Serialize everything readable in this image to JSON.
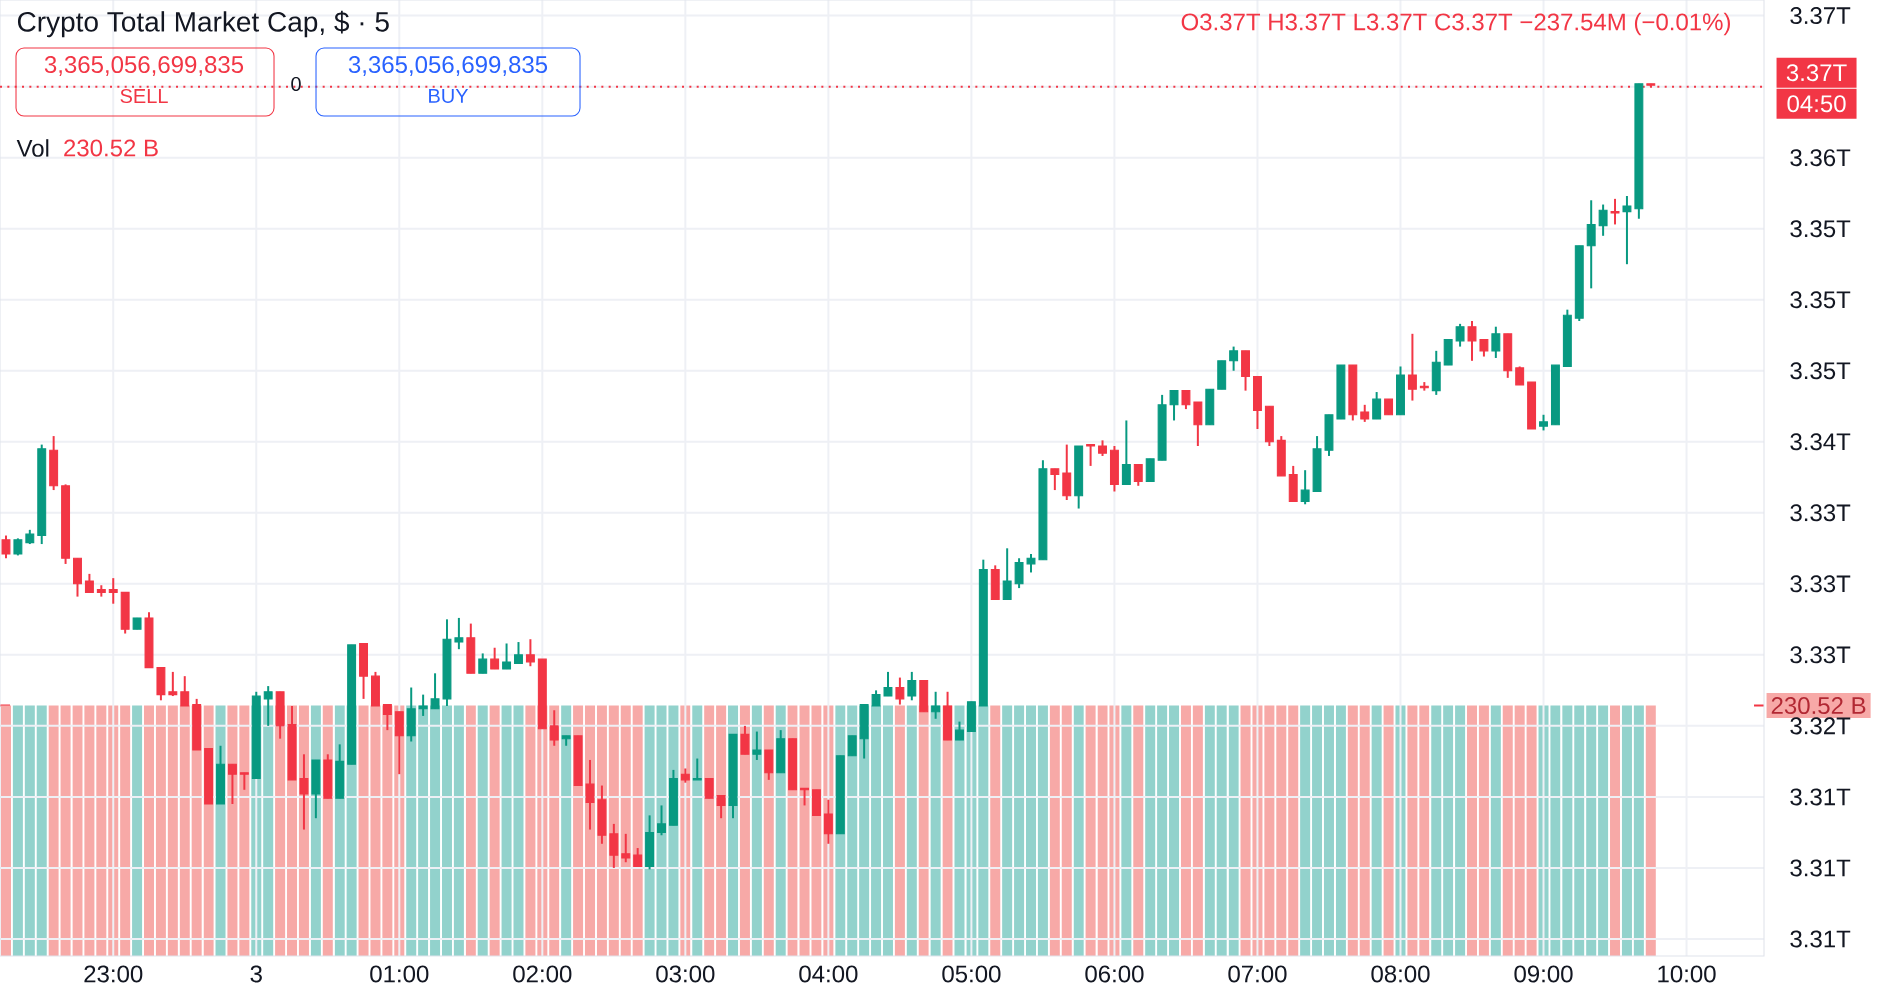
{
  "chart_data": {
    "type": "candlestick",
    "title": "Crypto Total Market Cap, $ · 5",
    "annotations": [
      "O3.37T H3.37T L3.37T C3.37T −237.54M (−0.01%)",
      "3,365,056,699,835",
      "SELL",
      "0",
      "3,365,056,699,835",
      "BUY",
      "230.52 B",
      "04:50",
      "Vol"
    ],
    "categories": [
      null,
      null,
      null,
      null,
      null,
      null,
      null,
      null,
      null,
      "23:00",
      null,
      null,
      null,
      null,
      null,
      null,
      null,
      null,
      null,
      null,
      null,
      "3",
      null,
      null,
      null,
      null,
      null,
      null,
      null,
      null,
      null,
      null,
      null,
      "01:00",
      null,
      null,
      null,
      null,
      null,
      null,
      null,
      null,
      null,
      null,
      null,
      "02:00",
      null,
      null,
      null,
      null,
      null,
      null,
      null,
      null,
      null,
      null,
      null,
      "03:00",
      null,
      null,
      null,
      null,
      null,
      null,
      null,
      null,
      null,
      null,
      null,
      "04:00",
      null,
      null,
      null,
      null,
      null,
      null,
      null,
      null,
      null,
      null,
      null,
      "05:00",
      null,
      null,
      null,
      null,
      null,
      null,
      null,
      null,
      null,
      null,
      null,
      "06:00",
      null,
      null,
      null,
      null,
      null,
      null,
      null,
      null,
      null,
      null,
      null,
      "07:00",
      null,
      null,
      null,
      null,
      null,
      null,
      null,
      null,
      null,
      null,
      null,
      "08:00",
      null,
      null,
      null,
      null,
      null,
      null,
      null,
      null,
      null,
      null,
      null,
      "09:00",
      null,
      null,
      null,
      null,
      null,
      null,
      null,
      null,
      null,
      null,
      null,
      "10:00",
      null,
      null,
      null,
      null,
      null,
      null
    ],
    "ylim": [
      3.3038,
      3.3711
    ],
    "y2lim": [
      0,
      880
    ],
    "yticks": [
      {
        "value": 3.37,
        "label": "3.37T"
      },
      {
        "value": 3.365,
        "label": null
      },
      {
        "value": 3.36,
        "label": "3.36T"
      },
      {
        "value": 3.355,
        "label": "3.35T"
      },
      {
        "value": 3.35,
        "label": "3.35T"
      },
      {
        "value": 3.345,
        "label": "3.35T"
      },
      {
        "value": 3.34,
        "label": "3.34T"
      },
      {
        "value": 3.335,
        "label": "3.33T"
      },
      {
        "value": 3.33,
        "label": "3.33T"
      },
      {
        "value": 3.325,
        "label": "3.33T"
      },
      {
        "value": 3.32,
        "label": "3.32T"
      },
      {
        "value": 3.315,
        "label": "3.31T"
      },
      {
        "value": 3.31,
        "label": "3.31T"
      },
      {
        "value": 3.305,
        "label": "3.31T"
      }
    ],
    "y2ticks": [
      {
        "value": 230.52,
        "label": "230.52 B"
      }
    ],
    "grid": true,
    "ref_lines": [
      {
        "axis": "y",
        "value": 3.365,
        "label": "3.37T",
        "color": "#f23645",
        "line_style": "dotted"
      }
    ],
    "series": [
      {
        "type": "bar",
        "axis": "y2",
        "values": [
          230.52,
          230.52,
          230.52,
          230.52,
          230.52,
          230.52,
          230.52,
          230.52,
          230.52,
          230.52,
          230.52,
          230.52,
          230.52,
          230.52,
          230.52,
          230.52,
          230.52,
          230.52,
          230.52,
          230.52,
          230.52,
          230.52,
          230.52,
          230.52,
          230.52,
          230.52,
          230.52,
          230.52,
          230.52,
          230.52,
          230.52,
          230.52,
          230.52,
          230.52,
          230.52,
          230.52,
          230.52,
          230.52,
          230.52,
          230.52,
          230.52,
          230.52,
          230.52,
          230.52,
          230.52,
          230.52,
          230.52,
          230.52,
          230.52,
          230.52,
          230.52,
          230.52,
          230.52,
          230.52,
          230.52,
          230.52,
          230.52,
          230.52,
          230.52,
          230.52,
          230.52,
          230.52,
          230.52,
          230.52,
          230.52,
          230.52,
          230.52,
          230.52,
          230.52,
          230.52,
          230.52,
          230.52,
          230.52,
          230.52,
          230.52,
          230.52,
          230.52,
          230.52,
          230.52,
          230.52,
          230.52,
          230.52,
          230.52,
          230.52,
          230.52,
          230.52,
          230.52,
          230.52,
          230.52,
          230.52,
          230.52,
          230.52,
          230.52,
          230.52,
          230.52,
          230.52,
          230.52,
          230.52,
          230.52,
          230.52,
          230.52,
          230.52,
          230.52,
          230.52,
          230.52,
          230.52,
          230.52,
          230.52,
          230.52,
          230.52,
          230.52,
          230.52,
          230.52,
          230.52,
          230.52,
          230.52,
          230.52,
          230.52,
          230.52,
          230.52,
          230.52,
          230.52,
          230.52,
          230.52,
          230.52,
          230.52,
          230.52,
          230.52,
          230.52,
          230.52,
          230.52,
          230.52,
          230.52,
          230.52,
          230.52,
          230.52,
          230.52,
          230.52,
          230.52,
          null,
          null,
          null,
          null,
          null,
          null,
          null,
          null,
          null
        ],
        "colors": [
          "#f7a9a7",
          "#92d2cc",
          "#92d2cc",
          "#92d2cc",
          "#f7a9a7",
          "#f7a9a7",
          "#f7a9a7",
          "#f7a9a7",
          "#f7a9a7",
          "#f7a9a7",
          "#f7a9a7",
          "#92d2cc",
          "#f7a9a7",
          "#f7a9a7",
          "#f7a9a7",
          "#f7a9a7",
          "#f7a9a7",
          "#f7a9a7",
          "#92d2cc",
          "#f7a9a7",
          "#f7a9a7",
          "#92d2cc",
          "#92d2cc",
          "#f7a9a7",
          "#f7a9a7",
          "#f7a9a7",
          "#92d2cc",
          "#f7a9a7",
          "#92d2cc",
          "#92d2cc",
          "#f7a9a7",
          "#f7a9a7",
          "#f7a9a7",
          "#f7a9a7",
          "#92d2cc",
          "#92d2cc",
          "#92d2cc",
          "#92d2cc",
          "#92d2cc",
          "#f7a9a7",
          "#92d2cc",
          "#f7a9a7",
          "#92d2cc",
          "#92d2cc",
          "#f7a9a7",
          "#f7a9a7",
          "#f7a9a7",
          "#92d2cc",
          "#f7a9a7",
          "#f7a9a7",
          "#f7a9a7",
          "#f7a9a7",
          "#f7a9a7",
          "#f7a9a7",
          "#92d2cc",
          "#92d2cc",
          "#92d2cc",
          "#f7a9a7",
          "#92d2cc",
          "#f7a9a7",
          "#f7a9a7",
          "#92d2cc",
          "#f7a9a7",
          "#92d2cc",
          "#f7a9a7",
          "#92d2cc",
          "#f7a9a7",
          "#f7a9a7",
          "#f7a9a7",
          "#f7a9a7",
          "#92d2cc",
          "#92d2cc",
          "#92d2cc",
          "#92d2cc",
          "#92d2cc",
          "#f7a9a7",
          "#92d2cc",
          "#f7a9a7",
          "#92d2cc",
          "#f7a9a7",
          "#92d2cc",
          "#92d2cc",
          "#92d2cc",
          "#f7a9a7",
          "#92d2cc",
          "#92d2cc",
          "#92d2cc",
          "#92d2cc",
          "#f7a9a7",
          "#f7a9a7",
          "#92d2cc",
          "#f7a9a7",
          "#f7a9a7",
          "#f7a9a7",
          "#92d2cc",
          "#f7a9a7",
          "#92d2cc",
          "#92d2cc",
          "#92d2cc",
          "#f7a9a7",
          "#f7a9a7",
          "#92d2cc",
          "#92d2cc",
          "#92d2cc",
          "#f7a9a7",
          "#f7a9a7",
          "#f7a9a7",
          "#f7a9a7",
          "#f7a9a7",
          "#92d2cc",
          "#92d2cc",
          "#92d2cc",
          "#92d2cc",
          "#f7a9a7",
          "#f7a9a7",
          "#92d2cc",
          "#f7a9a7",
          "#92d2cc",
          "#f7a9a7",
          "#f7a9a7",
          "#92d2cc",
          "#92d2cc",
          "#92d2cc",
          "#f7a9a7",
          "#f7a9a7",
          "#92d2cc",
          "#f7a9a7",
          "#f7a9a7",
          "#f7a9a7",
          "#92d2cc",
          "#92d2cc",
          "#92d2cc",
          "#92d2cc",
          "#92d2cc",
          "#92d2cc",
          "#f7a9a7",
          "#92d2cc",
          "#92d2cc",
          "#f7a9a7",
          null,
          null,
          null,
          null,
          null,
          null,
          null,
          null,
          null
        ]
      },
      {
        "ohlc": [
          [
            3.3331,
            3.3334,
            3.3318,
            3.3321
          ],
          [
            3.3321,
            3.3332,
            3.332,
            3.3331
          ],
          [
            3.3329,
            3.3338,
            3.3328,
            3.3335
          ],
          [
            3.3334,
            3.3398,
            3.3328,
            3.3395
          ],
          [
            3.3394,
            3.3404,
            3.3366,
            3.3369
          ],
          [
            3.3369,
            3.337,
            3.3314,
            3.3318
          ],
          [
            3.3318,
            3.3318,
            3.3291,
            3.33
          ],
          [
            3.3302,
            3.3307,
            3.3294,
            3.3294
          ],
          [
            3.3296,
            3.3299,
            3.3291,
            3.3294
          ],
          [
            3.3296,
            3.3304,
            3.3286,
            3.3294
          ],
          [
            3.3294,
            3.3294,
            3.3265,
            3.3268
          ],
          [
            3.3268,
            3.3276,
            3.3268,
            3.3276
          ],
          [
            3.3276,
            3.328,
            3.3241,
            3.3241
          ],
          [
            3.3241,
            3.3241,
            3.3218,
            3.3222
          ],
          [
            3.3224,
            3.3238,
            3.3221,
            3.3222
          ],
          [
            3.3224,
            3.3235,
            3.3214,
            3.3214
          ],
          [
            3.3215,
            3.3219,
            3.3183,
            3.3183
          ],
          [
            3.3184,
            3.3184,
            3.3145,
            3.3145
          ],
          [
            3.3145,
            3.3186,
            3.3145,
            3.3173
          ],
          [
            3.3173,
            3.3173,
            3.3145,
            3.3166
          ],
          [
            3.3167,
            3.3167,
            3.3155,
            3.3166
          ],
          [
            3.3163,
            3.3224,
            3.3163,
            3.3221
          ],
          [
            3.3219,
            3.3228,
            3.32,
            3.3224
          ],
          [
            3.3224,
            3.3224,
            3.3191,
            3.32
          ],
          [
            3.3201,
            3.3214,
            3.3162,
            3.3162
          ],
          [
            3.3163,
            3.318,
            3.3127,
            3.3152
          ],
          [
            3.3152,
            3.3176,
            3.3135,
            3.3176
          ],
          [
            3.3176,
            3.318,
            3.3149,
            3.3149
          ],
          [
            3.3149,
            3.3187,
            3.3149,
            3.3175
          ],
          [
            3.3173,
            3.3257,
            3.3173,
            3.3257
          ],
          [
            3.3258,
            3.3258,
            3.3219,
            3.3235
          ],
          [
            3.3235,
            3.3238,
            3.3214,
            3.3214
          ],
          [
            3.3215,
            3.3215,
            3.3197,
            3.3208
          ],
          [
            3.321,
            3.321,
            3.3166,
            3.3193
          ],
          [
            3.3193,
            3.3227,
            3.3189,
            3.3212
          ],
          [
            3.3212,
            3.3222,
            3.3207,
            3.3214
          ],
          [
            3.3212,
            3.3237,
            3.3212,
            3.3219
          ],
          [
            3.3219,
            3.3275,
            3.3214,
            3.3261
          ],
          [
            3.3259,
            3.3276,
            3.3254,
            3.3262
          ],
          [
            3.3262,
            3.3272,
            3.3237,
            3.3237
          ],
          [
            3.3237,
            3.3251,
            3.3237,
            3.3247
          ],
          [
            3.3247,
            3.3255,
            3.324,
            3.324
          ],
          [
            3.324,
            3.3258,
            3.324,
            3.3245
          ],
          [
            3.3244,
            3.3259,
            3.3244,
            3.325
          ],
          [
            3.325,
            3.3261,
            3.3242,
            3.3245
          ],
          [
            3.3247,
            3.3247,
            3.3198,
            3.3198
          ],
          [
            3.32,
            3.3211,
            3.3186,
            3.319
          ],
          [
            3.3191,
            3.3193,
            3.3186,
            3.3193
          ],
          [
            3.3193,
            3.3193,
            3.3158,
            3.3158
          ],
          [
            3.3159,
            3.3176,
            3.3127,
            3.3146
          ],
          [
            3.3148,
            3.3158,
            3.3117,
            3.3123
          ],
          [
            3.3124,
            3.3131,
            3.31,
            3.3109
          ],
          [
            3.311,
            3.3124,
            3.3104,
            3.3107
          ],
          [
            3.3109,
            3.3114,
            3.3101,
            3.3101
          ],
          [
            3.3101,
            3.3137,
            3.3099,
            3.3125
          ],
          [
            3.3125,
            3.3144,
            3.3123,
            3.3131
          ],
          [
            3.313,
            3.3169,
            3.313,
            3.3163
          ],
          [
            3.3166,
            3.317,
            3.316,
            3.3162
          ],
          [
            3.3162,
            3.3177,
            3.3162,
            3.3163
          ],
          [
            3.3163,
            3.3163,
            3.3149,
            3.3149
          ],
          [
            3.3151,
            3.3151,
            3.3135,
            3.3144
          ],
          [
            3.3144,
            3.3194,
            3.3135,
            3.3194
          ],
          [
            3.3194,
            3.32,
            3.318,
            3.318
          ],
          [
            3.318,
            3.3196,
            3.3176,
            3.3183
          ],
          [
            3.3183,
            3.3183,
            3.3162,
            3.3167
          ],
          [
            3.3167,
            3.3197,
            3.3167,
            3.3191
          ],
          [
            3.3191,
            3.3191,
            3.3155,
            3.3155
          ],
          [
            3.3156,
            3.3156,
            3.3144,
            3.3155
          ],
          [
            3.3155,
            3.3155,
            3.3137,
            3.3137
          ],
          [
            3.3138,
            3.3148,
            3.3117,
            3.3124
          ],
          [
            3.3124,
            3.3179,
            3.3124,
            3.3179
          ],
          [
            3.3179,
            3.3193,
            3.3179,
            3.3193
          ],
          [
            3.3191,
            3.3215,
            3.3177,
            3.3215
          ],
          [
            3.3214,
            3.3225,
            3.3214,
            3.3222
          ],
          [
            3.3221,
            3.3238,
            3.3221,
            3.3227
          ],
          [
            3.3227,
            3.3234,
            3.3215,
            3.3219
          ],
          [
            3.3221,
            3.3238,
            3.3218,
            3.3232
          ],
          [
            3.3232,
            3.3232,
            3.321,
            3.321
          ],
          [
            3.321,
            3.3224,
            3.3205,
            3.3214
          ],
          [
            3.3214,
            3.3224,
            3.319,
            3.319
          ],
          [
            3.319,
            3.3203,
            3.319,
            3.3197
          ],
          [
            3.3196,
            3.3217,
            3.3196,
            3.3217
          ],
          [
            3.3214,
            3.3317,
            3.3214,
            3.331
          ],
          [
            3.331,
            3.3313,
            3.3289,
            3.3289
          ],
          [
            3.3289,
            3.3325,
            3.3289,
            3.3302
          ],
          [
            3.33,
            3.3318,
            3.3297,
            3.3315
          ],
          [
            3.3314,
            3.3321,
            3.3308,
            3.3318
          ],
          [
            3.3317,
            3.3387,
            3.3317,
            3.3381
          ],
          [
            3.3381,
            3.3381,
            3.3366,
            3.3377
          ],
          [
            3.3378,
            3.3398,
            3.3359,
            3.3362
          ],
          [
            3.3362,
            3.3397,
            3.3353,
            3.3397
          ],
          [
            3.3398,
            3.3398,
            3.3383,
            3.3397
          ],
          [
            3.3397,
            3.3401,
            3.339,
            3.3392
          ],
          [
            3.3394,
            3.3397,
            3.3365,
            3.337
          ],
          [
            3.337,
            3.3415,
            3.337,
            3.3384
          ],
          [
            3.3384,
            3.3384,
            3.3369,
            3.3372
          ],
          [
            3.3372,
            3.3388,
            3.3372,
            3.3388
          ],
          [
            3.3387,
            3.3433,
            3.3387,
            3.3426
          ],
          [
            3.3426,
            3.3436,
            3.3415,
            3.3436
          ],
          [
            3.3436,
            3.3436,
            3.3423,
            3.3426
          ],
          [
            3.3428,
            3.3428,
            3.3397,
            3.3412
          ],
          [
            3.3412,
            3.3437,
            3.3412,
            3.3437
          ],
          [
            3.3437,
            3.3457,
            3.3437,
            3.3457
          ],
          [
            3.3457,
            3.3467,
            3.345,
            3.3464
          ],
          [
            3.3464,
            3.3464,
            3.3436,
            3.3446
          ],
          [
            3.3446,
            3.3446,
            3.3409,
            3.3422
          ],
          [
            3.3425,
            3.3425,
            3.3397,
            3.34
          ],
          [
            3.3401,
            3.3404,
            3.3376,
            3.3376
          ],
          [
            3.3377,
            3.3383,
            3.3358,
            3.3358
          ],
          [
            3.3358,
            3.338,
            3.3356,
            3.3366
          ],
          [
            3.3365,
            3.3404,
            3.3365,
            3.3395
          ],
          [
            3.3394,
            3.3419,
            3.339,
            3.3419
          ],
          [
            3.3416,
            3.3454,
            3.3416,
            3.3454
          ],
          [
            3.3454,
            3.3454,
            3.3415,
            3.3419
          ],
          [
            3.3421,
            3.3426,
            3.3414,
            3.3416
          ],
          [
            3.3416,
            3.3435,
            3.3416,
            3.343
          ],
          [
            3.343,
            3.343,
            3.3419,
            3.3419
          ],
          [
            3.3419,
            3.3453,
            3.3419,
            3.3447
          ],
          [
            3.3447,
            3.3476,
            3.3429,
            3.3437
          ],
          [
            3.3439,
            3.3442,
            3.3436,
            3.3438
          ],
          [
            3.3436,
            3.3464,
            3.3433,
            3.3456
          ],
          [
            3.3454,
            3.3472,
            3.3454,
            3.3472
          ],
          [
            3.3471,
            3.3483,
            3.3467,
            3.3481
          ],
          [
            3.3481,
            3.3485,
            3.3457,
            3.3471
          ],
          [
            3.3472,
            3.3472,
            3.346,
            3.3464
          ],
          [
            3.3464,
            3.3481,
            3.3459,
            3.3476
          ],
          [
            3.3476,
            3.3476,
            3.3445,
            3.345
          ],
          [
            3.3452,
            3.3453,
            3.344,
            3.344
          ],
          [
            3.3442,
            3.3442,
            3.3409,
            3.3409
          ],
          [
            3.3411,
            3.3419,
            3.3408,
            3.3414
          ],
          [
            3.3412,
            3.3454,
            3.3412,
            3.3454
          ],
          [
            3.3453,
            3.3493,
            3.3453,
            3.3489
          ],
          [
            3.3487,
            3.3538,
            3.3485,
            3.3538
          ],
          [
            3.3538,
            3.357,
            3.3508,
            3.3553
          ],
          [
            3.3552,
            3.3567,
            3.3545,
            3.3563
          ],
          [
            3.3562,
            3.3571,
            3.3553,
            3.3561
          ],
          [
            3.3562,
            3.3573,
            3.3525,
            3.3566
          ],
          [
            3.3564,
            3.3652,
            3.3557,
            3.3652
          ],
          [
            3.3652,
            3.3652,
            3.365,
            3.3651
          ],
          null,
          null,
          null,
          null,
          null,
          null,
          null,
          null,
          null
        ],
        "colors": [
          "#f23645",
          "#089981",
          "#089981",
          "#089981",
          "#f23645",
          "#f23645",
          "#f23645",
          "#f23645",
          "#f23645",
          "#f23645",
          "#f23645",
          "#089981",
          "#f23645",
          "#f23645",
          "#f23645",
          "#f23645",
          "#f23645",
          "#f23645",
          "#089981",
          "#f23645",
          "#f23645",
          "#089981",
          "#089981",
          "#f23645",
          "#f23645",
          "#f23645",
          "#089981",
          "#f23645",
          "#089981",
          "#089981",
          "#f23645",
          "#f23645",
          "#f23645",
          "#f23645",
          "#089981",
          "#089981",
          "#089981",
          "#089981",
          "#089981",
          "#f23645",
          "#089981",
          "#f23645",
          "#089981",
          "#089981",
          "#f23645",
          "#f23645",
          "#f23645",
          "#089981",
          "#f23645",
          "#f23645",
          "#f23645",
          "#f23645",
          "#f23645",
          "#f23645",
          "#089981",
          "#089981",
          "#089981",
          "#f23645",
          "#089981",
          "#f23645",
          "#f23645",
          "#089981",
          "#f23645",
          "#089981",
          "#f23645",
          "#089981",
          "#f23645",
          "#f23645",
          "#f23645",
          "#f23645",
          "#089981",
          "#089981",
          "#089981",
          "#089981",
          "#089981",
          "#f23645",
          "#089981",
          "#f23645",
          "#089981",
          "#f23645",
          "#089981",
          "#089981",
          "#089981",
          "#f23645",
          "#089981",
          "#089981",
          "#089981",
          "#089981",
          "#f23645",
          "#f23645",
          "#089981",
          "#f23645",
          "#f23645",
          "#f23645",
          "#089981",
          "#f23645",
          "#089981",
          "#089981",
          "#089981",
          "#f23645",
          "#f23645",
          "#089981",
          "#089981",
          "#089981",
          "#f23645",
          "#f23645",
          "#f23645",
          "#f23645",
          "#f23645",
          "#089981",
          "#089981",
          "#089981",
          "#089981",
          "#f23645",
          "#f23645",
          "#089981",
          "#f23645",
          "#089981",
          "#f23645",
          "#f23645",
          "#089981",
          "#089981",
          "#089981",
          "#f23645",
          "#f23645",
          "#089981",
          "#f23645",
          "#f23645",
          "#f23645",
          "#089981",
          "#089981",
          "#089981",
          "#089981",
          "#089981",
          "#089981",
          "#f23645",
          "#089981",
          "#089981",
          "#f23645",
          null,
          null,
          null,
          null,
          null,
          null,
          null,
          null,
          null
        ]
      }
    ]
  }
}
